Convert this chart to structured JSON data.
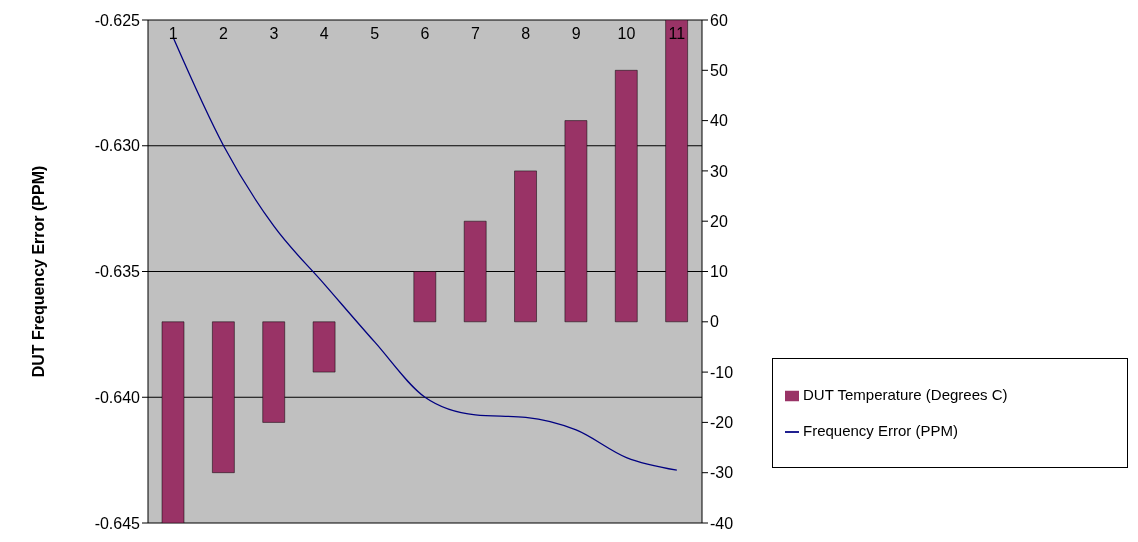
{
  "chart_data": {
    "type": "bar",
    "ylabel": "DUT Frequency Error (PPM)",
    "categories": [
      "1",
      "2",
      "3",
      "4",
      "5",
      "6",
      "7",
      "8",
      "9",
      "10",
      "11"
    ],
    "series": [
      {
        "name": "DUT Temperature (Degrees C)",
        "axis": "y2",
        "color": "#993366",
        "values": [
          -40,
          -30,
          -20,
          -10,
          0,
          10,
          20,
          30,
          40,
          50,
          60
        ]
      },
      {
        "name": "Frequency Error (PPM)",
        "type": "line",
        "axis": "y",
        "color": "#000080",
        "values": [
          -0.6257,
          -0.63,
          -0.6332,
          -0.6355,
          -0.6378,
          -0.64,
          -0.6407,
          -0.6408,
          -0.6413,
          -0.6424,
          -0.6429
        ]
      }
    ],
    "ylim": [
      -0.645,
      -0.625
    ],
    "yticks": [
      {
        "value": -0.645,
        "label": "-0.645"
      },
      {
        "value": -0.64,
        "label": "-0.640"
      },
      {
        "value": -0.635,
        "label": "-0.635"
      },
      {
        "value": -0.63,
        "label": "-0.630"
      },
      {
        "value": -0.625,
        "label": "-0.625"
      }
    ],
    "y2lim": [
      -40,
      60
    ],
    "y2ticks": [
      -40,
      -30,
      -20,
      -10,
      0,
      10,
      20,
      30,
      40,
      50,
      60
    ],
    "grid": "y",
    "legend": "right",
    "marker": "none",
    "line_style": "solid"
  }
}
